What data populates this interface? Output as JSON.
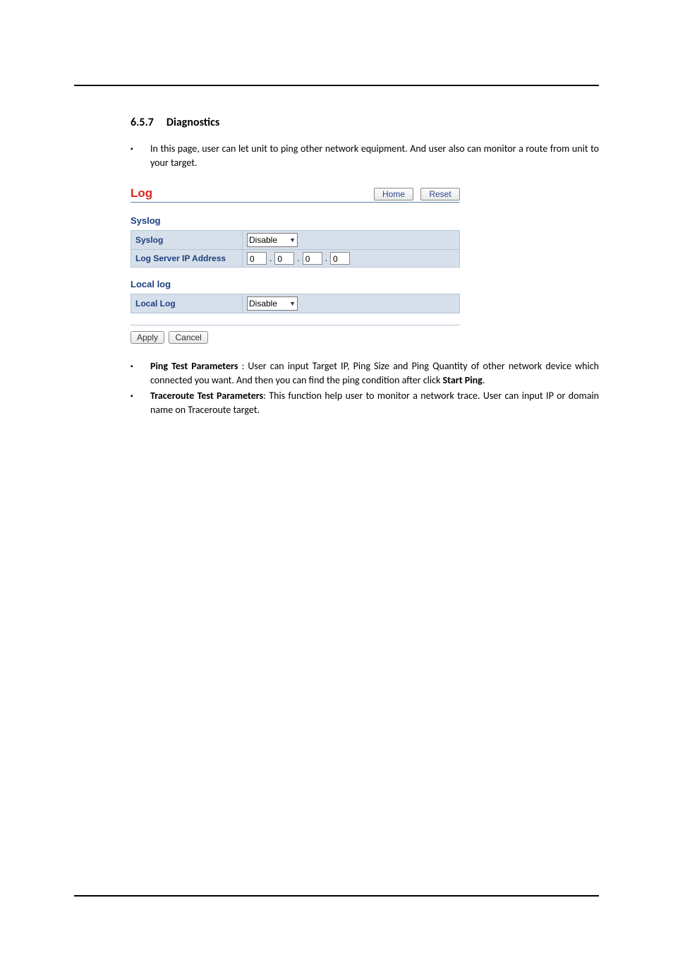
{
  "heading": {
    "number": "6.5.7",
    "title": "Diagnostics"
  },
  "intro": "In this page, user can let unit to ping other network equipment. And user also can monitor a route from unit to your target.",
  "panel": {
    "title": "Log",
    "home_btn": "Home",
    "reset_btn": "Reset",
    "syslog": {
      "heading": "Syslog",
      "row_syslog_label": "Syslog",
      "row_syslog_value": "Disable",
      "row_ip_label": "Log Server IP Address",
      "ip": {
        "a": "0",
        "b": "0",
        "c": "0",
        "d": "0"
      }
    },
    "locallog": {
      "heading": "Local log",
      "row_label": "Local Log",
      "row_value": "Disable"
    },
    "apply_btn": "Apply",
    "cancel_btn": "Cancel"
  },
  "bullets": {
    "ping_label": "Ping Test Parameters",
    "ping_body_a": " : User can input Target IP, Ping Size and Ping Quantity of other network device which connected you want. And then you can find the ping condition after click ",
    "ping_bold_tail": "Start Ping",
    "ping_tail_dot": ".",
    "tr_label": "Traceroute Test Parameters",
    "tr_body": ": This function help user to monitor a network trace. User can input IP or domain name on Traceroute target."
  }
}
